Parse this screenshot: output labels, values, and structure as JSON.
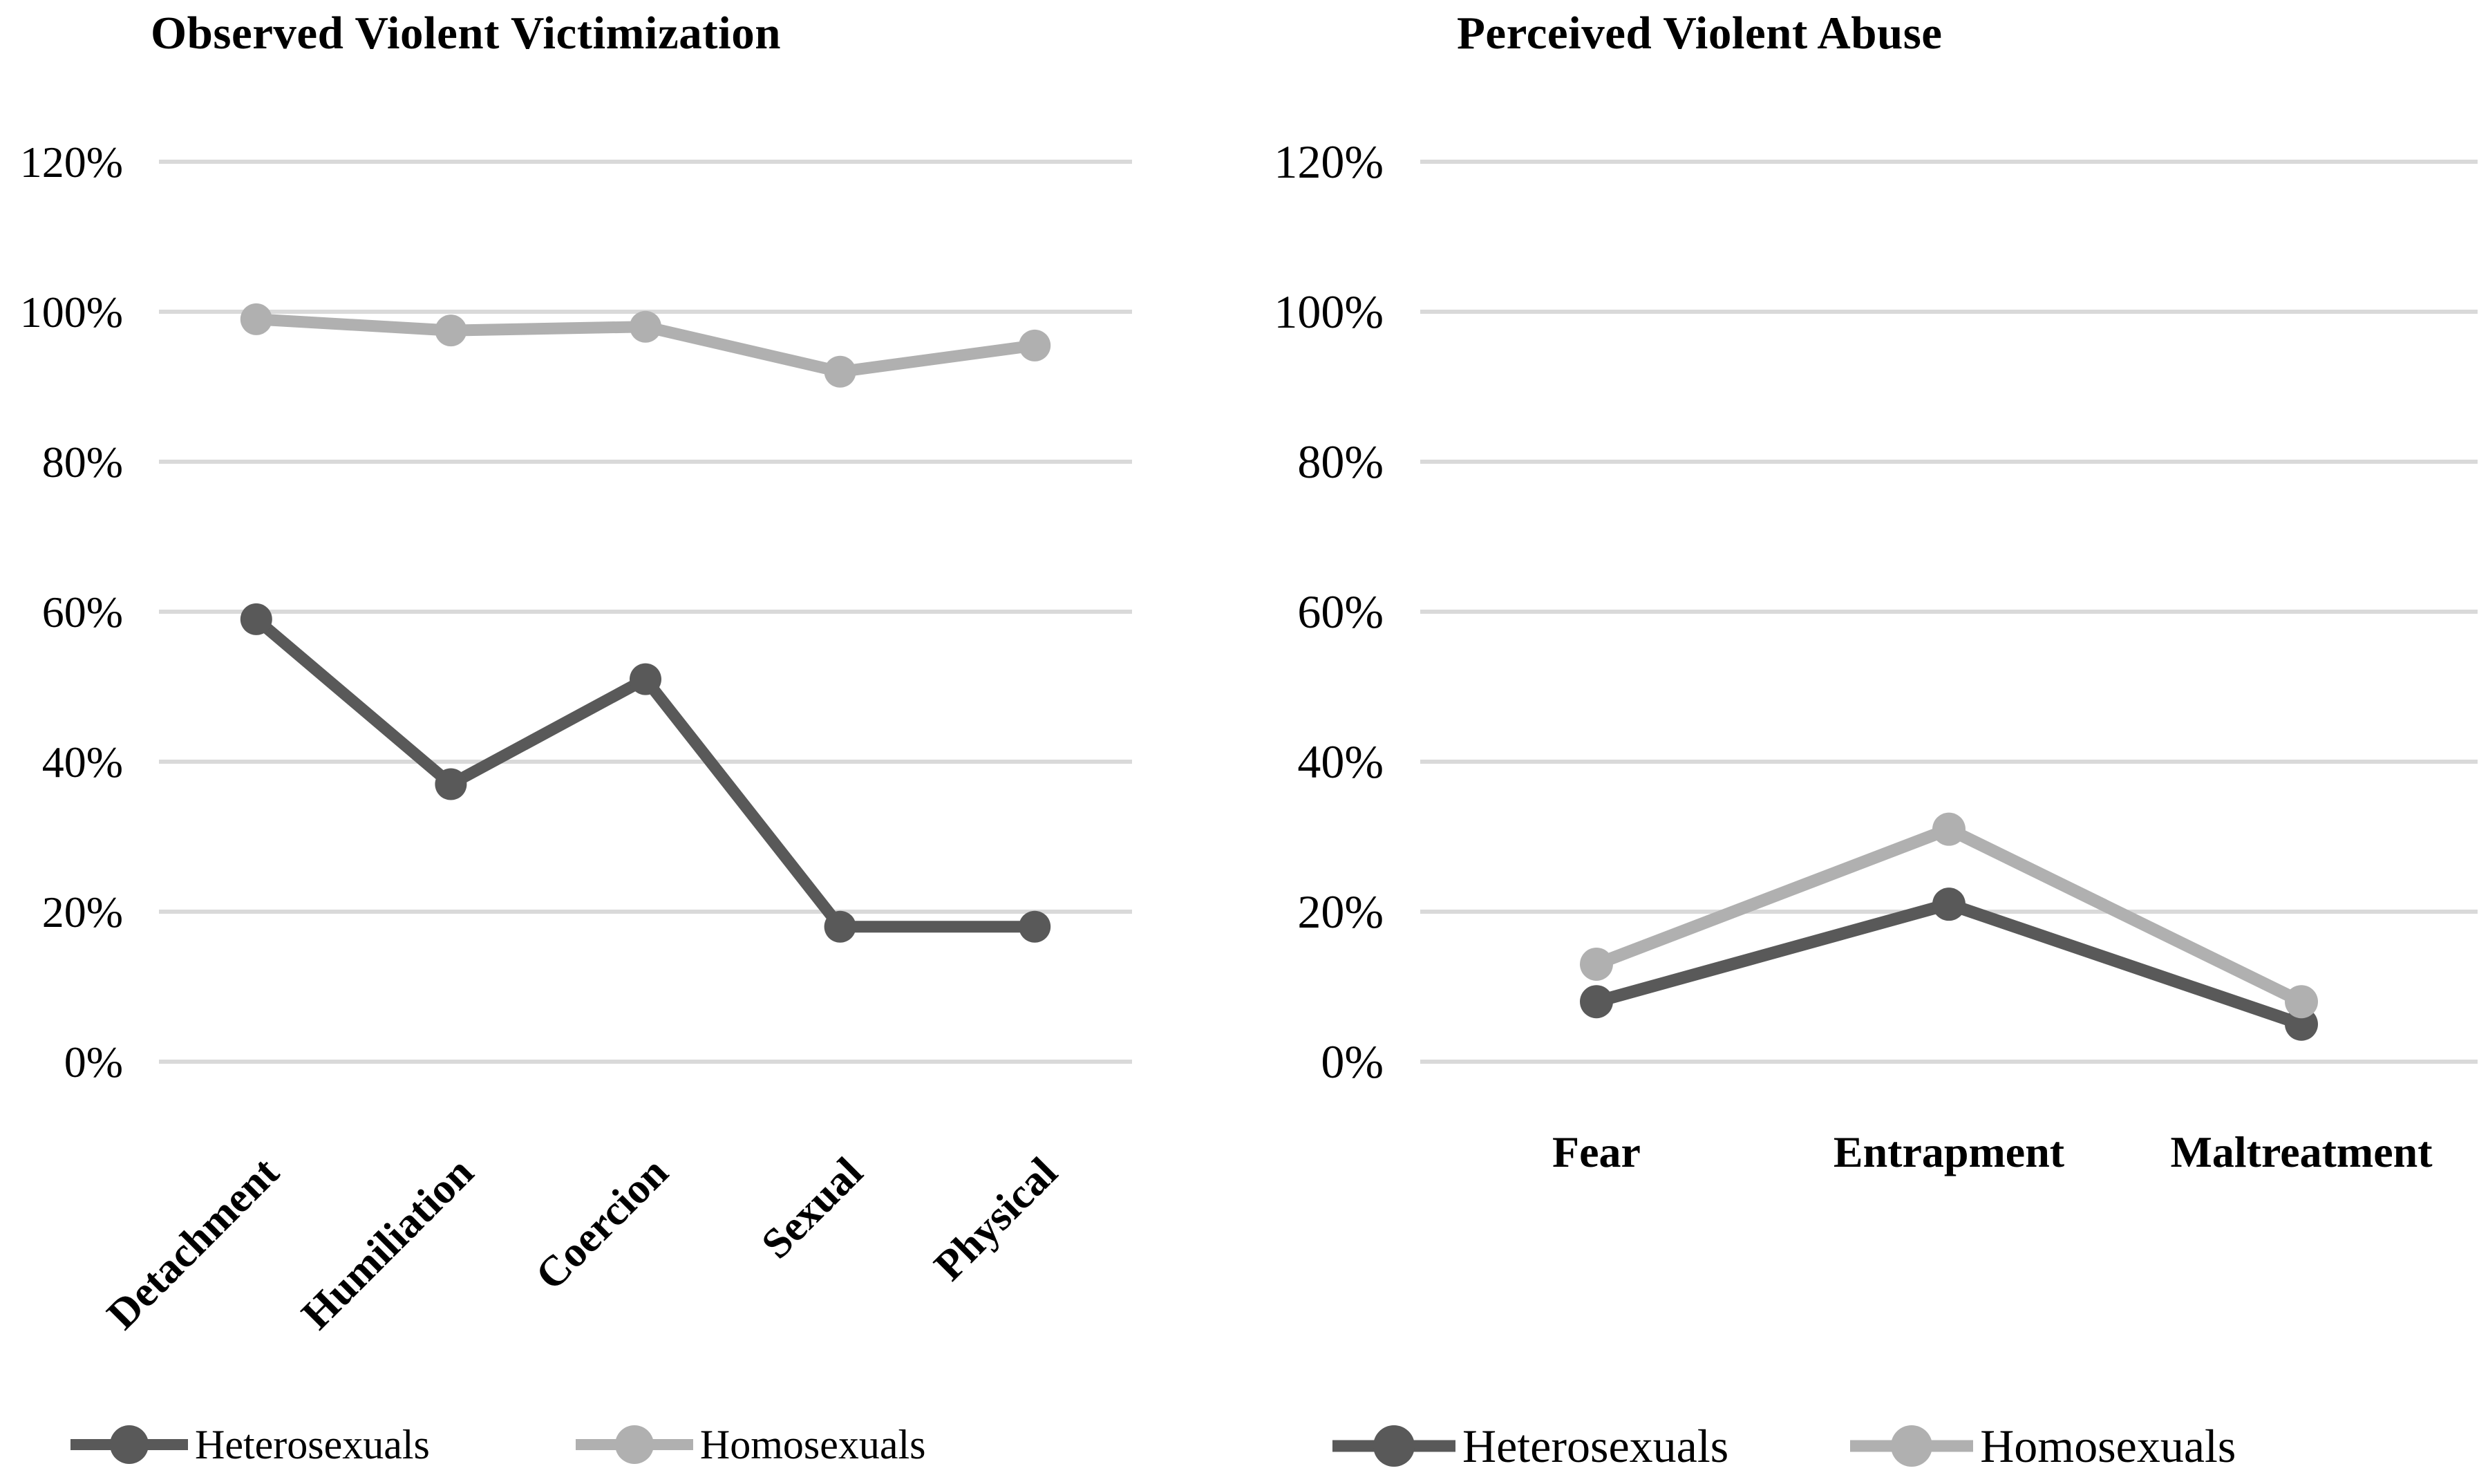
{
  "chart_data": [
    {
      "type": "line",
      "title": "Observed Violent Victimization",
      "categories": [
        "Detachment",
        "Humiliation",
        "Coercion",
        "Sexual",
        "Physical"
      ],
      "series": [
        {
          "name": "Heterosexuals",
          "color": "#595959",
          "values": [
            59,
            37,
            51,
            18,
            18
          ]
        },
        {
          "name": "Homosexuals",
          "color": "#b0b0b0",
          "values": [
            99,
            97.5,
            98,
            92,
            95.5
          ]
        }
      ],
      "ylim": [
        0,
        120
      ],
      "yticks": [
        {
          "value": 0,
          "label": "0%"
        },
        {
          "value": 20,
          "label": "20%"
        },
        {
          "value": 40,
          "label": "40%"
        },
        {
          "value": 60,
          "label": "60%"
        },
        {
          "value": 80,
          "label": "80%"
        },
        {
          "value": 100,
          "label": "100%"
        },
        {
          "value": 120,
          "label": "120%"
        }
      ],
      "grid": "horizontal",
      "gridline_color": "#d9d9d9",
      "x_label_rotation_deg": -45,
      "legend_position": "bottom"
    },
    {
      "type": "line",
      "title": "Perceived Violent Abuse",
      "categories": [
        "Fear",
        "Entrapment",
        "Maltreatment"
      ],
      "series": [
        {
          "name": "Heterosexuals",
          "color": "#595959",
          "values": [
            8,
            21,
            5
          ]
        },
        {
          "name": "Homosexuals",
          "color": "#b0b0b0",
          "values": [
            13,
            31,
            8
          ]
        }
      ],
      "ylim": [
        0,
        120
      ],
      "yticks": [
        {
          "value": 0,
          "label": "0%"
        },
        {
          "value": 20,
          "label": "20%"
        },
        {
          "value": 40,
          "label": "40%"
        },
        {
          "value": 60,
          "label": "60%"
        },
        {
          "value": 80,
          "label": "80%"
        },
        {
          "value": 100,
          "label": "100%"
        },
        {
          "value": 120,
          "label": "120%"
        }
      ],
      "grid": "horizontal",
      "gridline_color": "#d9d9d9",
      "x_label_rotation_deg": 0,
      "legend_position": "bottom"
    }
  ]
}
